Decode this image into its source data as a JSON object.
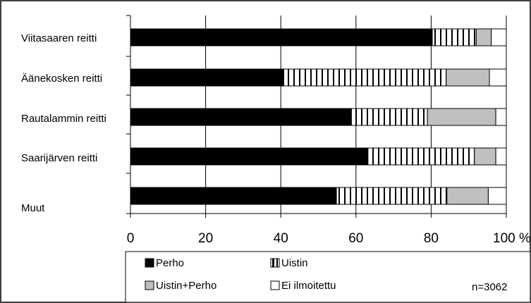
{
  "chart_data": {
    "type": "bar",
    "orientation": "horizontal",
    "stacked": true,
    "percent": true,
    "categories": [
      "Viitasaaren reitti",
      "Äänekosken reitti",
      "Rautalammin reitti",
      "Saarijärven reitti",
      "Muut"
    ],
    "series": [
      {
        "name": "Perho",
        "values": [
          80.3,
          40.8,
          58.8,
          63.2,
          54.8
        ],
        "pattern": "solid",
        "color": "#000000"
      },
      {
        "name": "Uistin",
        "values": [
          11.7,
          43.2,
          20.2,
          28.3,
          29.4
        ],
        "pattern": "vertical-stripes",
        "color": "#ffffff"
      },
      {
        "name": "Uistin+Perho",
        "values": [
          4.0,
          11.5,
          18.2,
          5.7,
          11.0
        ],
        "pattern": "solid",
        "color": "#c0c0c0"
      },
      {
        "name": "Ei ilmoitettu",
        "values": [
          4.0,
          4.5,
          2.8,
          2.8,
          4.8
        ],
        "pattern": "solid",
        "color": "#ffffff"
      }
    ],
    "xlim": [
      0,
      100
    ],
    "xticks": [
      "0",
      "20",
      "40",
      "60",
      "80",
      "100 %"
    ],
    "grid": true,
    "legend_position": "bottom",
    "annotation": "n=3062"
  }
}
